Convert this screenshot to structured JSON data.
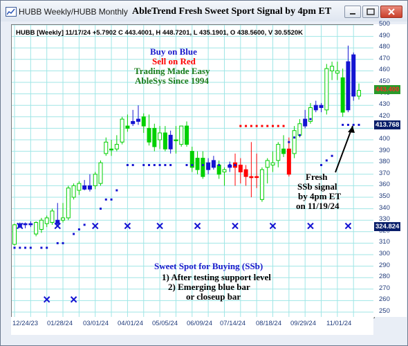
{
  "window": {
    "tab_weekly": "HUBB Weekly/HUBB Monthly",
    "title": "AbleTrend Fresh Sweet Sport Signal by 4pm ET"
  },
  "info_line": "HUBB [Weekly] 11/17/24 +5.7902 C 443.4001, H 448.7201, L 435.1901, O 438.5600, V 30.5520K",
  "annotations": {
    "buy": "Buy on Blue",
    "sell": "Sell on Red",
    "easy": "Trading Made Easy",
    "since": "AbleSys Since 1994",
    "fresh1": "Fresh",
    "fresh2": "SSb signal",
    "fresh3": "by 4pm ET",
    "fresh4": "on 11/19/24",
    "sweet_title": "Sweet Spot for Buying (SSb)",
    "sweet1": "1) After testing support level",
    "sweet2": "2) Emerging blue bar",
    "sweet3": "or closeup bar"
  },
  "price_tags": {
    "close": "443.400",
    "stop": "413.768",
    "support": "324.824"
  },
  "colors": {
    "blue": "#1414d2",
    "red": "#ff0000",
    "green": "#00d000",
    "ann_blue": "#1a1acc",
    "ann_green": "#1b7c1b",
    "grid": "#9fe6e6"
  },
  "chart_data": {
    "type": "candlestick",
    "title": "AbleTrend Fresh Sweet Sport Signal by 4pm ET",
    "ylim": [
      250,
      500
    ],
    "yticks": [
      250,
      260,
      270,
      280,
      290,
      300,
      310,
      320,
      330,
      340,
      350,
      360,
      370,
      380,
      390,
      400,
      410,
      420,
      430,
      440,
      450,
      460,
      470,
      480,
      490,
      500
    ],
    "xticks": [
      "12/24/23",
      "01/28/24",
      "03/01/24",
      "04/01/24",
      "05/05/24",
      "06/09/24",
      "07/14/24",
      "08/18/24",
      "09/29/24",
      "11/01/24"
    ],
    "candles": [
      {
        "o": 309,
        "h": 327,
        "l": 308,
        "c": 326,
        "col": "green"
      },
      {
        "o": 324,
        "h": 328,
        "l": 323,
        "c": 327,
        "col": "blue"
      },
      {
        "o": 326,
        "h": 328,
        "l": 323,
        "c": 327,
        "col": "blue"
      },
      {
        "o": 327,
        "h": 329,
        "l": 324,
        "c": 326,
        "col": "blue"
      },
      {
        "o": 318,
        "h": 329,
        "l": 316,
        "c": 328,
        "col": "green"
      },
      {
        "o": 322,
        "h": 332,
        "l": 319,
        "c": 330,
        "col": "green"
      },
      {
        "o": 327,
        "h": 334,
        "l": 324,
        "c": 332,
        "col": "green"
      },
      {
        "o": 328,
        "h": 340,
        "l": 326,
        "c": 338,
        "col": "green"
      },
      {
        "o": 327,
        "h": 345,
        "l": 326,
        "c": 330,
        "col": "blue"
      },
      {
        "o": 330,
        "h": 345,
        "l": 328,
        "c": 332,
        "col": "green"
      },
      {
        "o": 332,
        "h": 360,
        "l": 330,
        "c": 358,
        "col": "green"
      },
      {
        "o": 350,
        "h": 362,
        "l": 348,
        "c": 360,
        "col": "green"
      },
      {
        "o": 356,
        "h": 364,
        "l": 352,
        "c": 362,
        "col": "green"
      },
      {
        "o": 360,
        "h": 365,
        "l": 356,
        "c": 357,
        "col": "blue"
      },
      {
        "o": 357,
        "h": 370,
        "l": 355,
        "c": 360,
        "col": "blue"
      },
      {
        "o": 360,
        "h": 372,
        "l": 357,
        "c": 370,
        "col": "green"
      },
      {
        "o": 362,
        "h": 382,
        "l": 360,
        "c": 380,
        "col": "green"
      },
      {
        "o": 388,
        "h": 402,
        "l": 386,
        "c": 398,
        "col": "green"
      },
      {
        "o": 392,
        "h": 400,
        "l": 386,
        "c": 392,
        "col": "green"
      },
      {
        "o": 392,
        "h": 404,
        "l": 390,
        "c": 396,
        "col": "green"
      },
      {
        "o": 398,
        "h": 420,
        "l": 396,
        "c": 418,
        "col": "green"
      },
      {
        "o": 412,
        "h": 422,
        "l": 407,
        "c": 410,
        "col": "green"
      },
      {
        "o": 414,
        "h": 426,
        "l": 412,
        "c": 416,
        "col": "blue"
      },
      {
        "o": 418,
        "h": 430,
        "l": 413,
        "c": 416,
        "col": "blue"
      },
      {
        "o": 420,
        "h": 423,
        "l": 406,
        "c": 412,
        "col": "green"
      },
      {
        "o": 410,
        "h": 422,
        "l": 395,
        "c": 398,
        "col": "green"
      },
      {
        "o": 410,
        "h": 414,
        "l": 390,
        "c": 394,
        "col": "green"
      },
      {
        "o": 400,
        "h": 412,
        "l": 392,
        "c": 406,
        "col": "green"
      },
      {
        "o": 406,
        "h": 412,
        "l": 390,
        "c": 392,
        "col": "green"
      },
      {
        "o": 392,
        "h": 408,
        "l": 388,
        "c": 404,
        "col": "blue"
      },
      {
        "o": 400,
        "h": 412,
        "l": 388,
        "c": 400,
        "col": "green"
      },
      {
        "o": 396,
        "h": 412,
        "l": 394,
        "c": 412,
        "col": "green"
      },
      {
        "o": 412,
        "h": 416,
        "l": 394,
        "c": 396,
        "col": "green"
      },
      {
        "o": 390,
        "h": 394,
        "l": 372,
        "c": 376,
        "col": "green"
      },
      {
        "o": 384,
        "h": 390,
        "l": 370,
        "c": 374,
        "col": "green"
      },
      {
        "o": 384,
        "h": 390,
        "l": 366,
        "c": 368,
        "col": "green"
      },
      {
        "o": 374,
        "h": 384,
        "l": 370,
        "c": 380,
        "col": "blue"
      },
      {
        "o": 382,
        "h": 386,
        "l": 374,
        "c": 376,
        "col": "blue"
      },
      {
        "o": 378,
        "h": 382,
        "l": 366,
        "c": 370,
        "col": "green"
      },
      {
        "o": 372,
        "h": 376,
        "l": 360,
        "c": 374,
        "col": "green"
      },
      {
        "o": 376,
        "h": 381,
        "l": 372,
        "c": 378,
        "col": "blue"
      },
      {
        "o": 380,
        "h": 388,
        "l": 360,
        "c": 376,
        "col": "red"
      },
      {
        "o": 378,
        "h": 384,
        "l": 362,
        "c": 372,
        "col": "red"
      },
      {
        "o": 374,
        "h": 378,
        "l": 360,
        "c": 368,
        "col": "red"
      },
      {
        "o": 368,
        "h": 398,
        "l": 350,
        "c": 367,
        "col": "red"
      },
      {
        "o": 368,
        "h": 388,
        "l": 358,
        "c": 368,
        "col": "red"
      },
      {
        "o": 348,
        "h": 376,
        "l": 346,
        "c": 374,
        "col": "green"
      },
      {
        "o": 376,
        "h": 384,
        "l": 362,
        "c": 382,
        "col": "green"
      },
      {
        "o": 378,
        "h": 390,
        "l": 372,
        "c": 380,
        "col": "green"
      },
      {
        "o": 382,
        "h": 398,
        "l": 376,
        "c": 396,
        "col": "green"
      },
      {
        "o": 392,
        "h": 404,
        "l": 385,
        "c": 388,
        "col": "green"
      },
      {
        "o": 392,
        "h": 402,
        "l": 368,
        "c": 370,
        "col": "red"
      },
      {
        "o": 388,
        "h": 412,
        "l": 384,
        "c": 408,
        "col": "green"
      },
      {
        "o": 404,
        "h": 418,
        "l": 402,
        "c": 414,
        "col": "green"
      },
      {
        "o": 412,
        "h": 426,
        "l": 410,
        "c": 418,
        "col": "blue"
      },
      {
        "o": 416,
        "h": 432,
        "l": 414,
        "c": 428,
        "col": "green"
      },
      {
        "o": 426,
        "h": 434,
        "l": 424,
        "c": 430,
        "col": "blue"
      },
      {
        "o": 428,
        "h": 432,
        "l": 424,
        "c": 430,
        "col": "blue"
      },
      {
        "o": 426,
        "h": 466,
        "l": 422,
        "c": 462,
        "col": "green"
      },
      {
        "o": 460,
        "h": 468,
        "l": 452,
        "c": 464,
        "col": "green"
      },
      {
        "o": 458,
        "h": 468,
        "l": 452,
        "c": 460,
        "col": "green"
      },
      {
        "o": 454,
        "h": 462,
        "l": 420,
        "c": 424,
        "col": "green"
      },
      {
        "o": 426,
        "h": 482,
        "l": 424,
        "c": 468,
        "col": "blue"
      },
      {
        "o": 474,
        "h": 476,
        "l": 434,
        "c": 438,
        "col": "blue"
      },
      {
        "o": 438,
        "h": 449,
        "l": 435,
        "c": 443,
        "col": "green"
      }
    ],
    "stop_line": [
      {
        "i": 0,
        "v": 306
      },
      {
        "i": 1,
        "v": 306
      },
      {
        "i": 2,
        "v": 306
      },
      {
        "i": 3,
        "v": 306
      },
      {
        "i": 5,
        "v": 306
      },
      {
        "i": 6,
        "v": 306
      },
      {
        "i": 8,
        "v": 310
      },
      {
        "i": 9,
        "v": 310
      },
      {
        "i": 11,
        "v": 318
      },
      {
        "i": 12,
        "v": 322
      },
      {
        "i": 13,
        "v": 326
      },
      {
        "i": 16,
        "v": 340
      },
      {
        "i": 17,
        "v": 348
      },
      {
        "i": 18,
        "v": 348
      },
      {
        "i": 19,
        "v": 356
      },
      {
        "i": 21,
        "v": 378
      },
      {
        "i": 22,
        "v": 378
      },
      {
        "i": 24,
        "v": 378
      },
      {
        "i": 25,
        "v": 378
      },
      {
        "i": 26,
        "v": 378
      },
      {
        "i": 27,
        "v": 378
      },
      {
        "i": 28,
        "v": 378
      },
      {
        "i": 29,
        "v": 378
      },
      {
        "i": 32,
        "v": 378
      },
      {
        "i": 33,
        "v": 378
      },
      {
        "i": 35,
        "v": 378
      },
      {
        "i": 36,
        "v": 378
      },
      {
        "i": 37,
        "v": 378
      },
      {
        "i": 38,
        "v": 378
      },
      {
        "i": 40,
        "v": 378
      },
      {
        "i": 41,
        "v": 378
      },
      {
        "i": 42,
        "v": 412
      },
      {
        "i": 43,
        "v": 412
      },
      {
        "i": 44,
        "v": 412
      },
      {
        "i": 45,
        "v": 412
      },
      {
        "i": 46,
        "v": 412
      },
      {
        "i": 47,
        "v": 412
      },
      {
        "i": 48,
        "v": 412
      },
      {
        "i": 49,
        "v": 412
      },
      {
        "i": 50,
        "v": 412
      },
      {
        "i": 51,
        "v": 398
      },
      {
        "i": 52,
        "v": 402
      },
      {
        "i": 53,
        "v": 404
      },
      {
        "i": 54,
        "v": 414
      },
      {
        "i": 55,
        "v": 418
      },
      {
        "i": 57,
        "v": 378
      },
      {
        "i": 58,
        "v": 382
      },
      {
        "i": 59,
        "v": 386
      },
      {
        "i": 61,
        "v": 413
      },
      {
        "i": 62,
        "v": 413
      },
      {
        "i": 63,
        "v": 413
      },
      {
        "i": 64,
        "v": 413
      }
    ],
    "x_marks": [
      {
        "i": 1,
        "v": 325
      },
      {
        "i": 6,
        "v": 261
      },
      {
        "i": 8,
        "v": 325
      },
      {
        "i": 11,
        "v": 261
      },
      {
        "i": 15,
        "v": 325
      },
      {
        "i": 21,
        "v": 325
      },
      {
        "i": 27,
        "v": 325
      },
      {
        "i": 34,
        "v": 325
      },
      {
        "i": 41,
        "v": 325
      },
      {
        "i": 48,
        "v": 325
      },
      {
        "i": 55,
        "v": 325
      },
      {
        "i": 62,
        "v": 325
      }
    ]
  }
}
